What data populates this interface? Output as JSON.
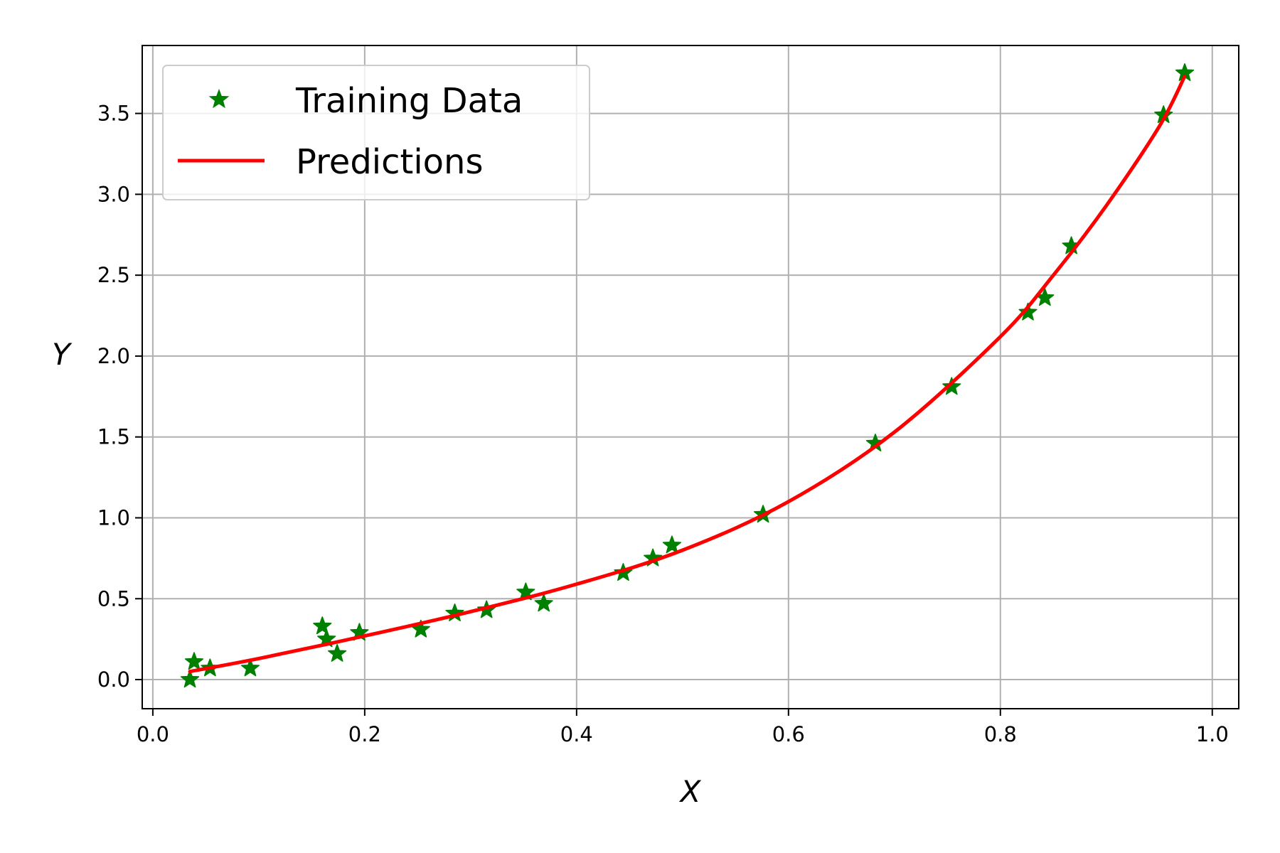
{
  "chart_data": {
    "type": "scatter",
    "title": "",
    "xlabel": "X",
    "ylabel": "Y",
    "xlim": [
      -0.01,
      1.025
    ],
    "ylim": [
      -0.18,
      3.92
    ],
    "grid": true,
    "legend_position": "top-left",
    "x_ticks": [
      0.0,
      0.2,
      0.4,
      0.6,
      0.8,
      1.0
    ],
    "x_tick_labels": [
      "0.0",
      "0.2",
      "0.4",
      "0.6",
      "0.8",
      "1.0"
    ],
    "y_ticks": [
      0.0,
      0.5,
      1.0,
      1.5,
      2.0,
      2.5,
      3.0,
      3.5
    ],
    "y_tick_labels": [
      "0.0",
      "0.5",
      "1.0",
      "1.5",
      "2.0",
      "2.5",
      "3.0",
      "3.5"
    ],
    "series": [
      {
        "name": "Training Data",
        "kind": "scatter",
        "marker": "star",
        "color": "#008000",
        "points": [
          [
            0.035,
            0.0
          ],
          [
            0.039,
            0.11
          ],
          [
            0.054,
            0.07
          ],
          [
            0.092,
            0.07
          ],
          [
            0.16,
            0.33
          ],
          [
            0.164,
            0.25
          ],
          [
            0.174,
            0.16
          ],
          [
            0.195,
            0.29
          ],
          [
            0.253,
            0.31
          ],
          [
            0.285,
            0.41
          ],
          [
            0.315,
            0.43
          ],
          [
            0.352,
            0.54
          ],
          [
            0.369,
            0.47
          ],
          [
            0.444,
            0.66
          ],
          [
            0.472,
            0.75
          ],
          [
            0.49,
            0.83
          ],
          [
            0.576,
            1.02
          ],
          [
            0.682,
            1.46
          ],
          [
            0.754,
            1.81
          ],
          [
            0.826,
            2.27
          ],
          [
            0.842,
            2.36
          ],
          [
            0.867,
            2.68
          ],
          [
            0.954,
            3.49
          ],
          [
            0.974,
            3.75
          ]
        ]
      },
      {
        "name": "Predictions",
        "kind": "line",
        "color": "#ff0000",
        "x": [
          0.035,
          0.1,
          0.2,
          0.3,
          0.4,
          0.5,
          0.6,
          0.7,
          0.8,
          0.85,
          0.9,
          0.95,
          0.974
        ],
        "y": [
          0.05,
          0.13,
          0.27,
          0.42,
          0.59,
          0.8,
          1.1,
          1.53,
          2.12,
          2.5,
          2.93,
          3.42,
          3.73
        ]
      }
    ]
  }
}
